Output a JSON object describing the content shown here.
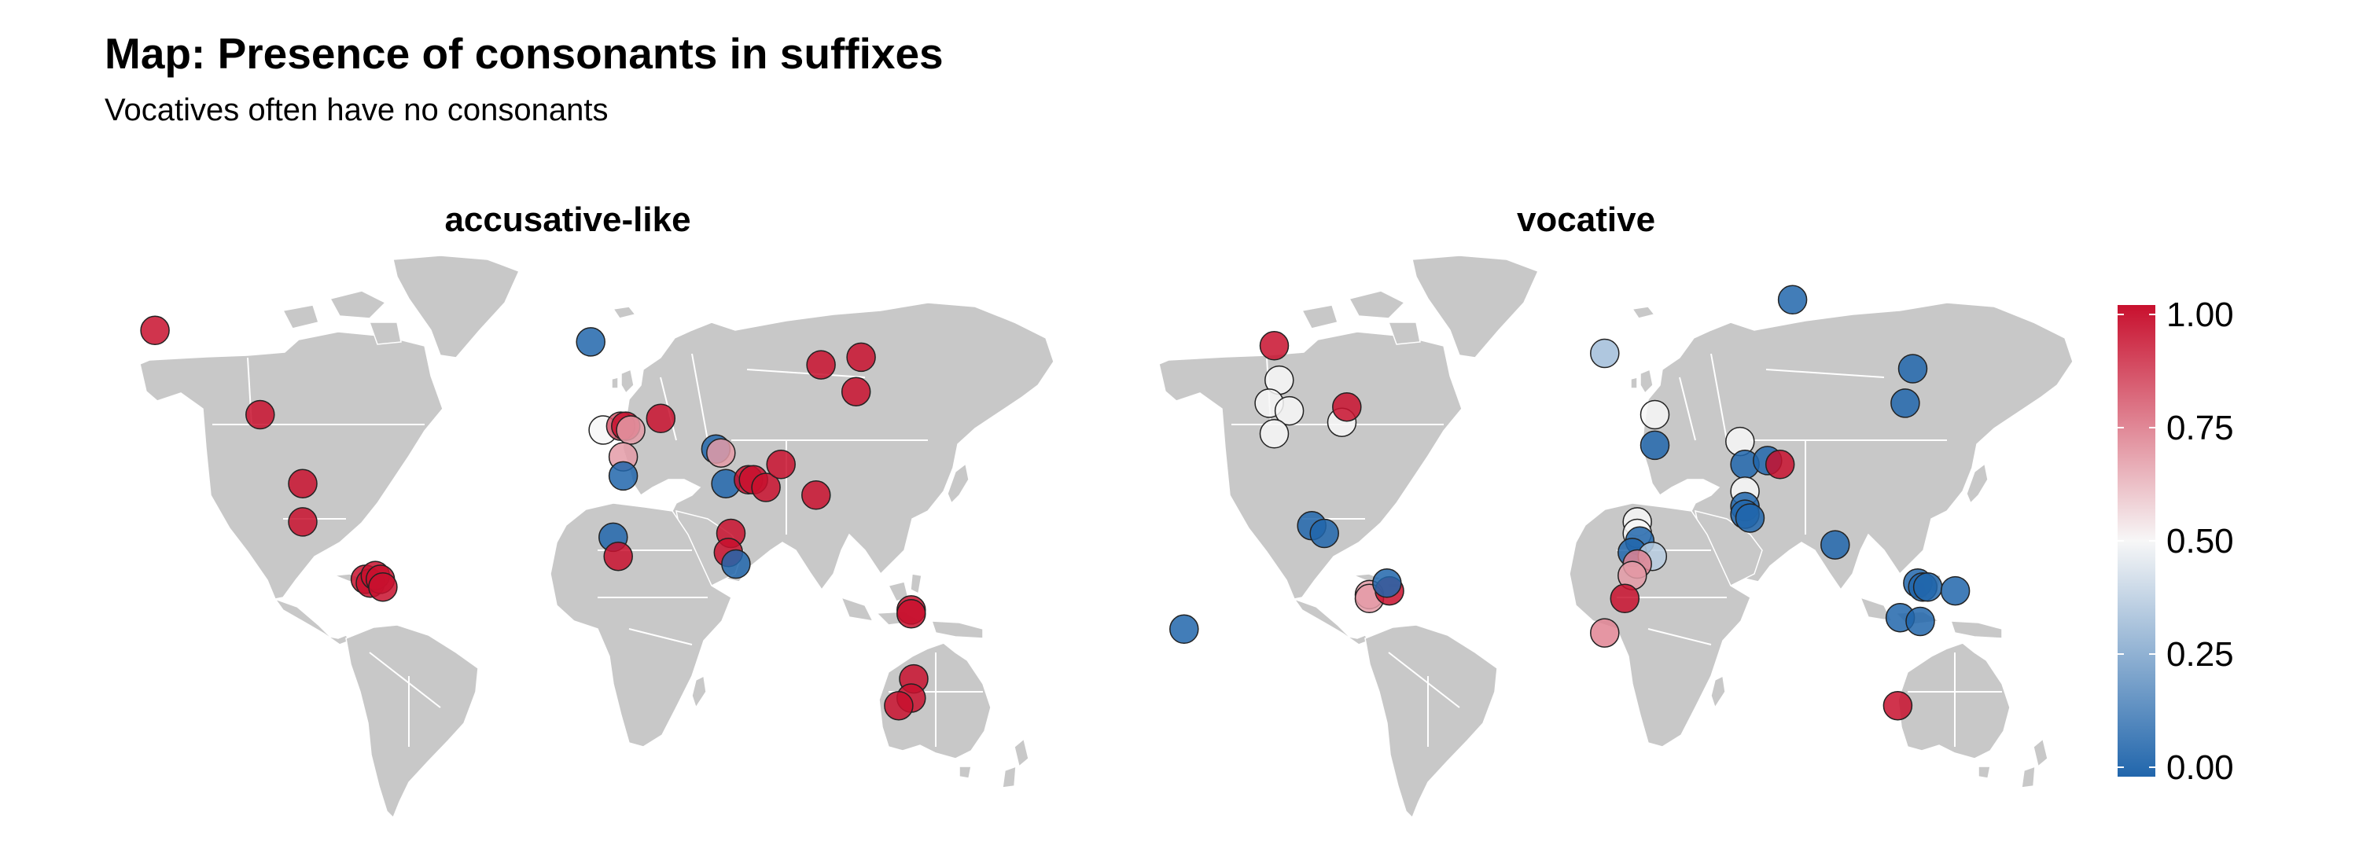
{
  "title": "Map: Presence of consonants in suffixes",
  "subtitle": "Vocatives often have no consonants",
  "colors": {
    "land": "#c8c8c8",
    "border": "#ffffff",
    "low": "#2166ac",
    "mid": "#f7f7f7",
    "high": "#c8102e",
    "point_outline": "#222222"
  },
  "chart_data": {
    "type": "scatter",
    "projection": "equirectangular world map",
    "x_label": "longitude",
    "y_label": "latitude",
    "x_range": [
      -168,
      190
    ],
    "y_range": [
      -56,
      84
    ],
    "facets": [
      "accusative-like",
      "vocative"
    ],
    "color_scale": {
      "variable": "proportion",
      "range": [
        0,
        1
      ],
      "ticks": [
        1.0,
        0.75,
        0.5,
        0.25,
        0.0
      ],
      "tick_labels": [
        "1.00",
        "0.75",
        "0.50",
        "0.25",
        "0.00"
      ],
      "low": "#2166ac",
      "mid": "#f7f7f7",
      "high": "#c8102e"
    },
    "series": [
      {
        "name": "accusative-like",
        "points": [
          {
            "lon": -162,
            "lat": 63,
            "value": 1.0
          },
          {
            "lon": -120,
            "lat": 41,
            "value": 1.0
          },
          {
            "lon": -103,
            "lat": 23,
            "value": 1.0
          },
          {
            "lon": -103,
            "lat": 13,
            "value": 1.0
          },
          {
            "lon": -78,
            "lat": -2,
            "value": 1.0
          },
          {
            "lon": -76,
            "lat": -3,
            "value": 1.0
          },
          {
            "lon": -74,
            "lat": -1,
            "value": 1.0
          },
          {
            "lon": -72,
            "lat": -2,
            "value": 1.0
          },
          {
            "lon": -71,
            "lat": -4,
            "value": 1.0
          },
          {
            "lon": 12,
            "lat": 60,
            "value": 0.0
          },
          {
            "lon": 17,
            "lat": 37,
            "value": 0.5
          },
          {
            "lon": 24,
            "lat": 38,
            "value": 0.85
          },
          {
            "lon": 26,
            "lat": 38,
            "value": 1.0
          },
          {
            "lon": 28,
            "lat": 37,
            "value": 0.7
          },
          {
            "lon": 25,
            "lat": 30,
            "value": 0.7
          },
          {
            "lon": 25,
            "lat": 25,
            "value": 0.0
          },
          {
            "lon": 21,
            "lat": 9,
            "value": 0.0
          },
          {
            "lon": 23,
            "lat": 4,
            "value": 1.0
          },
          {
            "lon": 40,
            "lat": 40,
            "value": 1.0
          },
          {
            "lon": 62,
            "lat": 32,
            "value": 0.0
          },
          {
            "lon": 64,
            "lat": 31,
            "value": 0.7
          },
          {
            "lon": 66,
            "lat": 23,
            "value": 0.0
          },
          {
            "lon": 68,
            "lat": 10,
            "value": 1.0
          },
          {
            "lon": 67,
            "lat": 5,
            "value": 1.0
          },
          {
            "lon": 70,
            "lat": 2,
            "value": 0.0
          },
          {
            "lon": 75,
            "lat": 24,
            "value": 1.0
          },
          {
            "lon": 77,
            "lat": 24,
            "value": 1.0
          },
          {
            "lon": 82,
            "lat": 22,
            "value": 1.0
          },
          {
            "lon": 88,
            "lat": 28,
            "value": 1.0
          },
          {
            "lon": 102,
            "lat": 20,
            "value": 1.0
          },
          {
            "lon": 104,
            "lat": 54,
            "value": 1.0
          },
          {
            "lon": 118,
            "lat": 47,
            "value": 1.0
          },
          {
            "lon": 120,
            "lat": 56,
            "value": 1.0
          },
          {
            "lon": 140,
            "lat": -10,
            "value": 1.0
          },
          {
            "lon": 140,
            "lat": -11,
            "value": 1.0
          },
          {
            "lon": 141,
            "lat": -28,
            "value": 1.0
          },
          {
            "lon": 140,
            "lat": -33,
            "value": 1.0
          },
          {
            "lon": 135,
            "lat": -35,
            "value": 1.0
          }
        ]
      },
      {
        "name": "vocative",
        "points": [
          {
            "lon": -158,
            "lat": -15,
            "value": 0.0
          },
          {
            "lon": -122,
            "lat": 59,
            "value": 1.0
          },
          {
            "lon": -120,
            "lat": 50,
            "value": 0.5
          },
          {
            "lon": -124,
            "lat": 44,
            "value": 0.5
          },
          {
            "lon": -116,
            "lat": 42,
            "value": 0.5
          },
          {
            "lon": -122,
            "lat": 36,
            "value": 0.5
          },
          {
            "lon": -95,
            "lat": 39,
            "value": 0.5
          },
          {
            "lon": -93,
            "lat": 43,
            "value": 1.0
          },
          {
            "lon": -107,
            "lat": 12,
            "value": 0.0
          },
          {
            "lon": -102,
            "lat": 10,
            "value": 0.0
          },
          {
            "lon": -84,
            "lat": -6,
            "value": 0.7
          },
          {
            "lon": -84,
            "lat": -7,
            "value": 0.7
          },
          {
            "lon": -76,
            "lat": -5,
            "value": 1.0
          },
          {
            "lon": -77,
            "lat": -3,
            "value": 0.0
          },
          {
            "lon": 10,
            "lat": 57,
            "value": 0.3
          },
          {
            "lon": 30,
            "lat": 41,
            "value": 0.5
          },
          {
            "lon": 30,
            "lat": 33,
            "value": 0.0
          },
          {
            "lon": 23,
            "lat": 13,
            "value": 0.5
          },
          {
            "lon": 23,
            "lat": 10,
            "value": 0.5
          },
          {
            "lon": 24,
            "lat": 8,
            "value": 0.0
          },
          {
            "lon": 21,
            "lat": 5,
            "value": 0.0
          },
          {
            "lon": 29,
            "lat": 4,
            "value": 0.35
          },
          {
            "lon": 23,
            "lat": 2,
            "value": 0.75
          },
          {
            "lon": 21,
            "lat": -1,
            "value": 0.7
          },
          {
            "lon": 18,
            "lat": -7,
            "value": 1.0
          },
          {
            "lon": 10,
            "lat": -16,
            "value": 0.75
          },
          {
            "lon": 64,
            "lat": 34,
            "value": 0.5
          },
          {
            "lon": 66,
            "lat": 28,
            "value": 0.0
          },
          {
            "lon": 75,
            "lat": 29,
            "value": 0.0
          },
          {
            "lon": 80,
            "lat": 28,
            "value": 1.0
          },
          {
            "lon": 66,
            "lat": 21,
            "value": 0.5
          },
          {
            "lon": 66,
            "lat": 17,
            "value": 0.0
          },
          {
            "lon": 66,
            "lat": 15,
            "value": 0.0
          },
          {
            "lon": 68,
            "lat": 14,
            "value": 0.0
          },
          {
            "lon": 85,
            "lat": 71,
            "value": 0.0
          },
          {
            "lon": 133,
            "lat": 53,
            "value": 0.0
          },
          {
            "lon": 130,
            "lat": 44,
            "value": 0.0
          },
          {
            "lon": 102,
            "lat": 7,
            "value": 0.0
          },
          {
            "lon": 135,
            "lat": -3,
            "value": 0.0
          },
          {
            "lon": 137,
            "lat": -4,
            "value": 0.0
          },
          {
            "lon": 139,
            "lat": -4,
            "value": 0.0
          },
          {
            "lon": 150,
            "lat": -5,
            "value": 0.0
          },
          {
            "lon": 128,
            "lat": -12,
            "value": 0.0
          },
          {
            "lon": 136,
            "lat": -13,
            "value": 0.0
          },
          {
            "lon": 127,
            "lat": -35,
            "value": 1.0
          }
        ]
      }
    ]
  }
}
